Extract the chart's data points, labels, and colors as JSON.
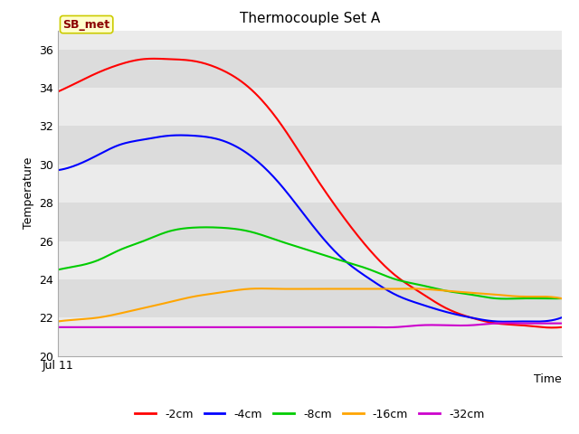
{
  "title": "Thermocouple Set A",
  "xlabel": "Time",
  "ylabel": "Temperature",
  "ylim": [
    20,
    37
  ],
  "yticks": [
    20,
    22,
    24,
    26,
    28,
    30,
    32,
    34,
    36
  ],
  "xstart_label": "Jul 11",
  "annotation_text": "SB_met",
  "annotation_color": "#8B0000",
  "annotation_bg": "#FFFFCC",
  "annotation_border": "#CCCC00",
  "plot_bg_light": "#EBEBEB",
  "plot_bg_dark": "#DCDCDC",
  "fig_bg": "#FFFFFF",
  "series": {
    "-2cm": {
      "color": "#FF0000",
      "x": [
        0.0,
        0.04,
        0.08,
        0.12,
        0.17,
        0.22,
        0.27,
        0.32,
        0.38,
        0.44,
        0.5,
        0.56,
        0.62,
        0.67,
        0.72,
        0.77,
        0.82,
        0.87,
        0.92,
        0.96,
        1.0
      ],
      "y": [
        33.8,
        34.3,
        34.8,
        35.2,
        35.5,
        35.5,
        35.4,
        35.0,
        34.0,
        32.2,
        29.8,
        27.5,
        25.5,
        24.2,
        23.3,
        22.5,
        22.0,
        21.7,
        21.6,
        21.5,
        21.5
      ]
    },
    "-4cm": {
      "color": "#0000FF",
      "x": [
        0.0,
        0.04,
        0.08,
        0.12,
        0.17,
        0.22,
        0.27,
        0.32,
        0.38,
        0.44,
        0.5,
        0.56,
        0.62,
        0.67,
        0.72,
        0.77,
        0.82,
        0.87,
        0.92,
        0.96,
        1.0
      ],
      "y": [
        29.7,
        30.0,
        30.5,
        31.0,
        31.3,
        31.5,
        31.5,
        31.3,
        30.5,
        29.0,
        27.0,
        25.2,
        24.0,
        23.2,
        22.7,
        22.3,
        22.0,
        21.8,
        21.8,
        21.8,
        22.0
      ]
    },
    "-8cm": {
      "color": "#00CC00",
      "x": [
        0.0,
        0.04,
        0.08,
        0.12,
        0.17,
        0.22,
        0.27,
        0.32,
        0.38,
        0.44,
        0.5,
        0.56,
        0.62,
        0.67,
        0.72,
        0.77,
        0.82,
        0.87,
        0.92,
        0.96,
        1.0
      ],
      "y": [
        24.5,
        24.7,
        25.0,
        25.5,
        26.0,
        26.5,
        26.7,
        26.7,
        26.5,
        26.0,
        25.5,
        25.0,
        24.5,
        24.0,
        23.7,
        23.4,
        23.2,
        23.0,
        23.0,
        23.0,
        23.0
      ]
    },
    "-16cm": {
      "color": "#FFA500",
      "x": [
        0.0,
        0.04,
        0.08,
        0.12,
        0.17,
        0.22,
        0.27,
        0.32,
        0.38,
        0.44,
        0.5,
        0.56,
        0.62,
        0.67,
        0.72,
        0.77,
        0.82,
        0.87,
        0.92,
        0.96,
        1.0
      ],
      "y": [
        21.8,
        21.9,
        22.0,
        22.2,
        22.5,
        22.8,
        23.1,
        23.3,
        23.5,
        23.5,
        23.5,
        23.5,
        23.5,
        23.5,
        23.5,
        23.4,
        23.3,
        23.2,
        23.1,
        23.1,
        23.0
      ]
    },
    "-32cm": {
      "color": "#CC00CC",
      "x": [
        0.0,
        0.04,
        0.08,
        0.12,
        0.17,
        0.22,
        0.27,
        0.32,
        0.38,
        0.44,
        0.5,
        0.56,
        0.62,
        0.67,
        0.72,
        0.77,
        0.82,
        0.87,
        0.92,
        0.96,
        1.0
      ],
      "y": [
        21.5,
        21.5,
        21.5,
        21.5,
        21.5,
        21.5,
        21.5,
        21.5,
        21.5,
        21.5,
        21.5,
        21.5,
        21.5,
        21.5,
        21.6,
        21.6,
        21.6,
        21.7,
        21.7,
        21.7,
        21.7
      ]
    }
  }
}
